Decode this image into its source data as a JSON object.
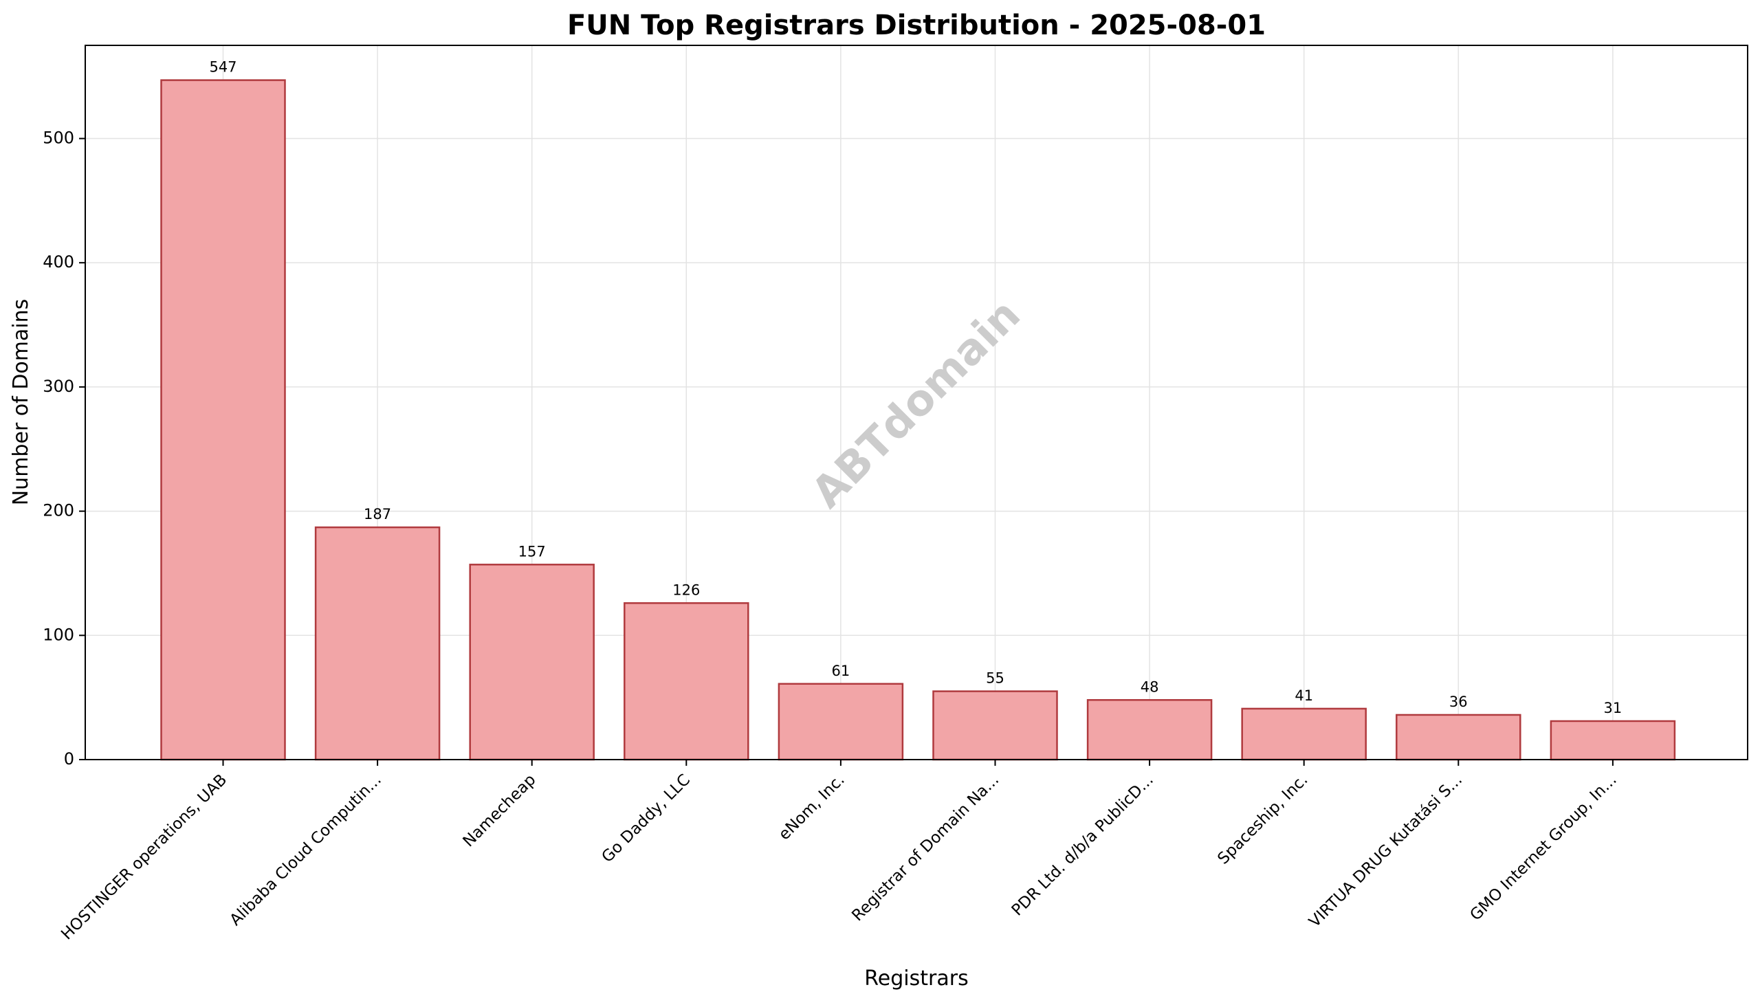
{
  "chart_data": {
    "type": "bar",
    "title": "FUN Top Registrars Distribution - 2025-08-01",
    "xlabel": "Registrars",
    "ylabel": "Number of Domains",
    "categories": [
      "HOSTINGER operations, UAB",
      "Alibaba Cloud Computin...",
      "Namecheap",
      "Go Daddy, LLC",
      "eNom, Inc.",
      "Registrar of Domain Na...",
      "PDR Ltd. d/b/a PublicD...",
      "Spaceship, Inc.",
      "VIRTUA DRUG Kutatási S...",
      "GMO Internet Group, In..."
    ],
    "values": [
      547,
      187,
      157,
      126,
      61,
      55,
      48,
      41,
      36,
      31
    ],
    "data_labels": [
      "547",
      "187",
      "157",
      "126",
      "61",
      "55",
      "48",
      "41",
      "36",
      "31"
    ],
    "ylim": [
      0,
      575
    ],
    "yticks": [
      0,
      100,
      200,
      300,
      400,
      500
    ],
    "grid": true,
    "watermark": "ABTdomain",
    "colors": {
      "bar_fill": "#f2a5a7",
      "bar_edge": "#b03a3e",
      "grid": "#e3e3e3",
      "watermark": "#cccccc",
      "axis": "#000000"
    }
  }
}
